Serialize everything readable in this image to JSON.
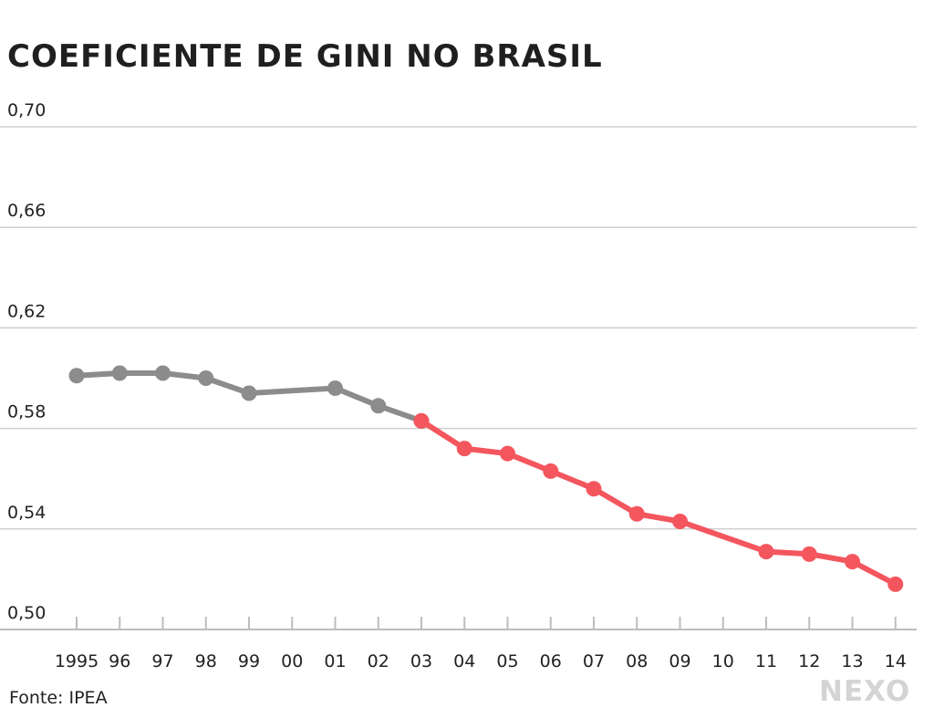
{
  "chart_data": {
    "type": "line",
    "title": "COEFICIENTE DE GINI NO BRASIL",
    "x_labels": [
      "1995",
      "96",
      "97",
      "98",
      "99",
      "00",
      "01",
      "02",
      "03",
      "04",
      "05",
      "06",
      "07",
      "08",
      "09",
      "10",
      "11",
      "12",
      "13",
      "14"
    ],
    "y_ticks": [
      "0,70",
      "0,66",
      "0,62",
      "0,58",
      "0,54",
      "0,50"
    ],
    "ylim": [
      0.5,
      0.7
    ],
    "grid": true,
    "series": [
      {
        "color": "#8c8c8c",
        "points": [
          {
            "x": "1995",
            "y": 0.601
          },
          {
            "x": "96",
            "y": 0.602
          },
          {
            "x": "97",
            "y": 0.602
          },
          {
            "x": "98",
            "y": 0.6
          },
          {
            "x": "99",
            "y": 0.594
          },
          {
            "x": "01",
            "y": 0.596
          },
          {
            "x": "02",
            "y": 0.589
          },
          {
            "x": "03",
            "y": 0.583
          }
        ]
      },
      {
        "color": "#f4565e",
        "points": [
          {
            "x": "03",
            "y": 0.583
          },
          {
            "x": "04",
            "y": 0.572
          },
          {
            "x": "05",
            "y": 0.57
          },
          {
            "x": "06",
            "y": 0.563
          },
          {
            "x": "07",
            "y": 0.556
          },
          {
            "x": "08",
            "y": 0.546
          },
          {
            "x": "09",
            "y": 0.543
          },
          {
            "x": "11",
            "y": 0.531
          },
          {
            "x": "12",
            "y": 0.53
          },
          {
            "x": "13",
            "y": 0.527
          },
          {
            "x": "14",
            "y": 0.518
          }
        ]
      }
    ]
  },
  "footer": {
    "source": "Fonte: IPEA",
    "brand": "NEXO"
  }
}
